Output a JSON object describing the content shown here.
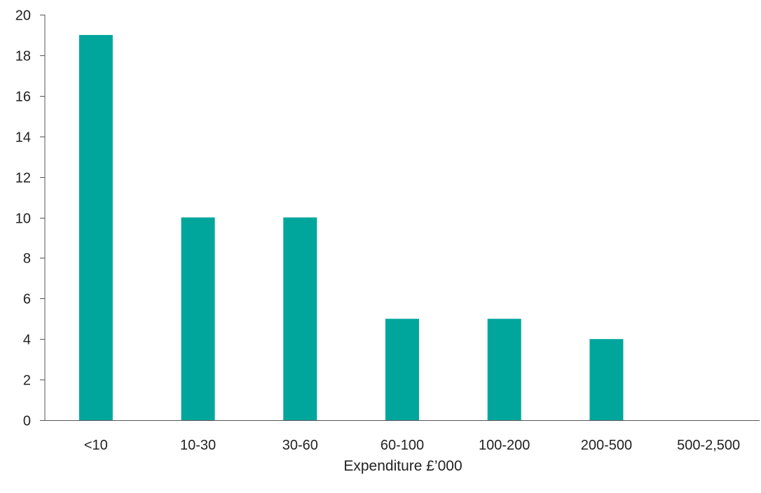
{
  "chart_data": {
    "type": "bar",
    "title": "",
    "xlabel": "Expenditure £’000",
    "ylabel": "",
    "categories": [
      "<10",
      "10-30",
      "30-60",
      "60-100",
      "100-200",
      "200-500",
      "500-2,500"
    ],
    "values": [
      19,
      10,
      10,
      5,
      5,
      4,
      0
    ],
    "ylim": [
      0,
      20
    ],
    "yticks": [
      0,
      2,
      4,
      6,
      8,
      10,
      12,
      14,
      16,
      18,
      20
    ],
    "grid": false,
    "legend": "none",
    "bar_color": "#00A69C"
  }
}
